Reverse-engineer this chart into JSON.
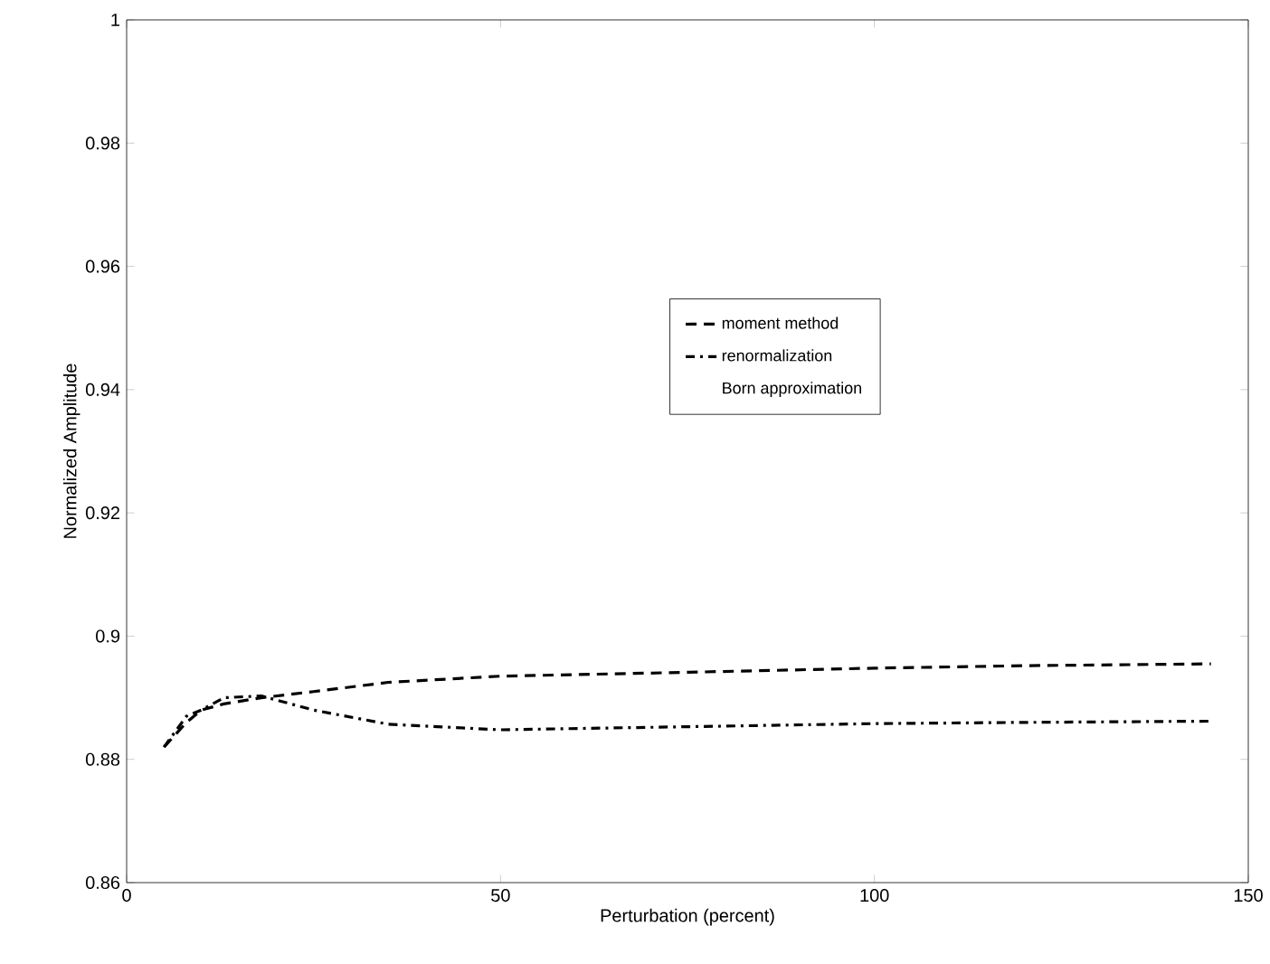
{
  "chart_data": {
    "type": "line",
    "xlabel": "Perturbation (percent)",
    "ylabel": "Normalized Amplitude",
    "x": [
      5,
      8,
      10,
      13,
      18,
      25,
      35,
      50,
      70,
      100,
      120,
      145
    ],
    "xlim": [
      0,
      150
    ],
    "xticks": [
      0,
      50,
      100,
      150
    ],
    "ylim": [
      0.86,
      1
    ],
    "yticks": [
      0.86,
      0.88,
      0.9,
      0.92,
      0.94,
      0.96,
      0.98,
      1
    ],
    "legend": "right",
    "grid": false,
    "series": [
      {
        "name": "moment method",
        "color": "#000000",
        "line_style": "dashed",
        "values": [
          0.882,
          0.886,
          0.888,
          0.889,
          0.89,
          0.891,
          0.8925,
          0.8935,
          0.894,
          0.8948,
          0.8952,
          0.8955
        ]
      },
      {
        "name": "renormalization",
        "color": "#000000",
        "line_style": "dashdot",
        "values": [
          0.882,
          0.887,
          0.888,
          0.89,
          0.8903,
          0.888,
          0.8857,
          0.8848,
          0.8852,
          0.8858,
          0.886,
          0.8862
        ]
      },
      {
        "name": "Born approximation",
        "values": [
          null,
          null,
          null,
          null,
          null,
          null,
          null,
          null,
          null,
          null,
          null,
          null
        ]
      }
    ]
  }
}
